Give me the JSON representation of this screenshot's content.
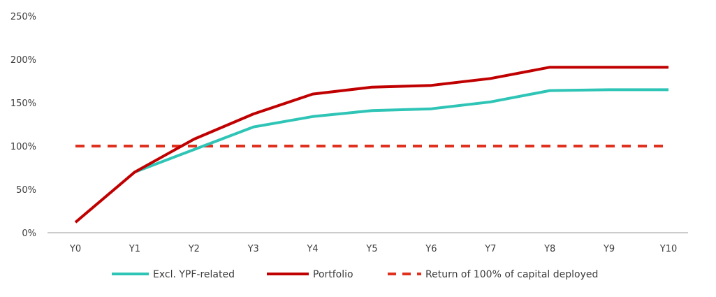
{
  "chart_data": {
    "type": "line",
    "title": "",
    "xlabel": "",
    "ylabel": "",
    "categories": [
      "Y0",
      "Y1",
      "Y2",
      "Y3",
      "Y4",
      "Y5",
      "Y6",
      "Y7",
      "Y8",
      "Y9",
      "Y10"
    ],
    "ylim": [
      0,
      250
    ],
    "yticks": [
      0,
      50,
      100,
      150,
      200,
      250
    ],
    "ytick_labels": [
      "0%",
      "50%",
      "100%",
      "150%",
      "200%",
      "250%"
    ],
    "grid": false,
    "legend_position": "bottom",
    "series": [
      {
        "name": "Excl. YPF-related",
        "color": "#2ec4b6",
        "style": "solid",
        "values": [
          null,
          70,
          96,
          122,
          134,
          141,
          143,
          151,
          164,
          165,
          165
        ]
      },
      {
        "name": "Portfolio",
        "color": "#c00000",
        "style": "solid",
        "values": [
          12,
          70,
          108,
          137,
          160,
          168,
          170,
          178,
          191,
          191,
          191
        ]
      },
      {
        "name": "Return of 100% of capital deployed",
        "color": "#e0301e",
        "style": "dashed",
        "values": [
          100,
          100,
          100,
          100,
          100,
          100,
          100,
          100,
          100,
          100,
          100
        ]
      }
    ]
  }
}
